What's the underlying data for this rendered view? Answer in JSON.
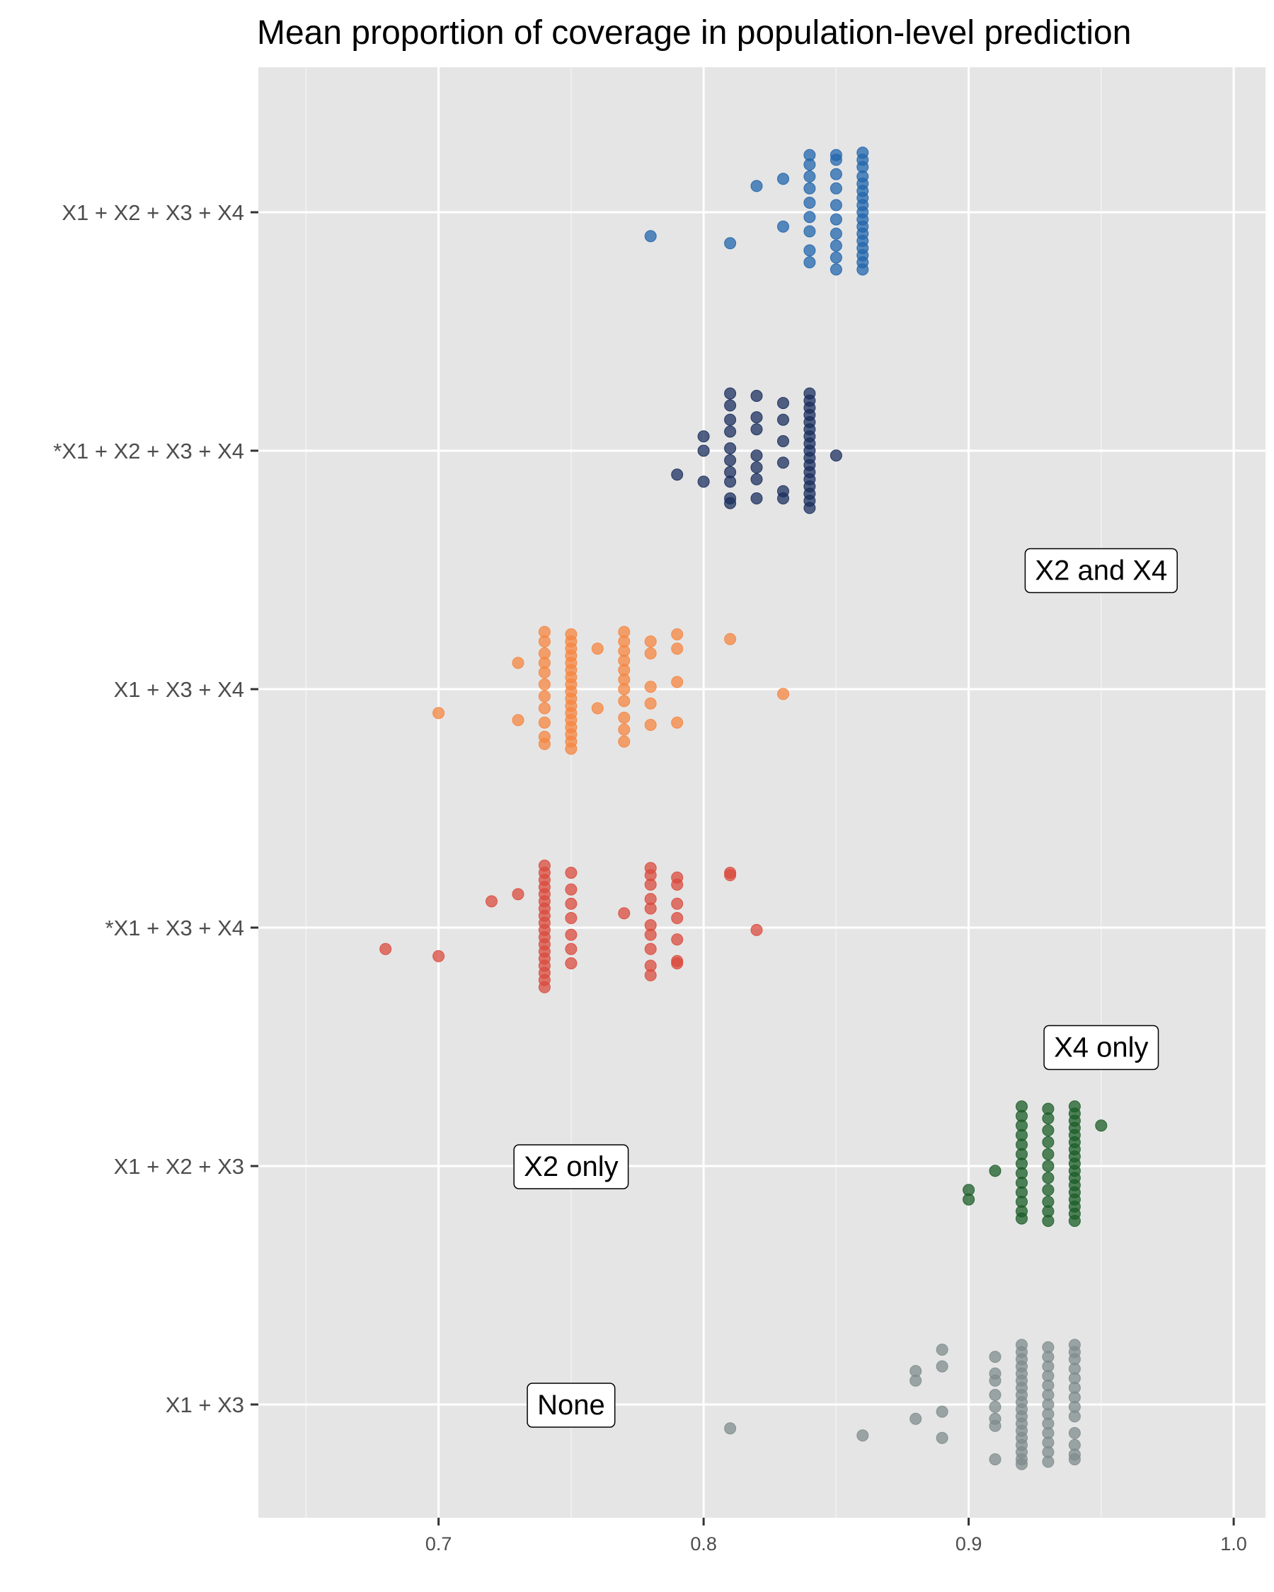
{
  "chart_data": {
    "type": "scatter",
    "title": "Mean proportion of coverage in population-level prediction",
    "xlabel": "",
    "ylabel": "",
    "xlim": [
      0.632,
      1.012
    ],
    "x_ticks": [
      "0.7",
      "0.8",
      "0.9",
      "1.0"
    ],
    "x_tick_values": [
      0.7,
      0.8,
      0.9,
      1.0
    ],
    "x_minor_grid": [
      0.65,
      0.75,
      0.85,
      0.95
    ],
    "grid": true,
    "legend": "none",
    "categories": [
      "X1 + X2 + X3 + X4",
      "*X1 + X2 + X3 + X4",
      "X1 + X3 + X4",
      "*X1 + X3 + X4",
      "X1 + X2 + X3",
      "X1 + X3"
    ],
    "series": [
      {
        "category": "X1 + X2 + X3 + X4",
        "color": "#2166ac",
        "points": [
          [
            0.78,
            -0.1
          ],
          [
            0.81,
            -0.13
          ],
          [
            0.82,
            0.11
          ],
          [
            0.83,
            0.14
          ],
          [
            0.83,
            -0.06
          ],
          [
            0.84,
            0.24
          ],
          [
            0.84,
            0.2
          ],
          [
            0.84,
            0.15
          ],
          [
            0.84,
            0.1
          ],
          [
            0.84,
            0.04
          ],
          [
            0.84,
            -0.02
          ],
          [
            0.84,
            -0.08
          ],
          [
            0.84,
            -0.16
          ],
          [
            0.84,
            -0.21
          ],
          [
            0.85,
            0.24
          ],
          [
            0.85,
            0.22
          ],
          [
            0.85,
            0.16
          ],
          [
            0.85,
            0.1
          ],
          [
            0.85,
            0.03
          ],
          [
            0.85,
            -0.03
          ],
          [
            0.85,
            -0.09
          ],
          [
            0.85,
            -0.14
          ],
          [
            0.85,
            -0.19
          ],
          [
            0.85,
            -0.24
          ],
          [
            0.86,
            0.25
          ],
          [
            0.86,
            0.22
          ],
          [
            0.86,
            0.19
          ],
          [
            0.86,
            0.15
          ],
          [
            0.86,
            0.12
          ],
          [
            0.86,
            0.09
          ],
          [
            0.86,
            0.06
          ],
          [
            0.86,
            0.03
          ],
          [
            0.86,
            0.0
          ],
          [
            0.86,
            -0.03
          ],
          [
            0.86,
            -0.06
          ],
          [
            0.86,
            -0.09
          ],
          [
            0.86,
            -0.12
          ],
          [
            0.86,
            -0.15
          ],
          [
            0.86,
            -0.18
          ],
          [
            0.86,
            -0.21
          ],
          [
            0.86,
            -0.24
          ]
        ]
      },
      {
        "category": "*X1 + X2 + X3 + X4",
        "color": "#1b2f5e",
        "points": [
          [
            0.79,
            -0.1
          ],
          [
            0.8,
            0.06
          ],
          [
            0.8,
            0.0
          ],
          [
            0.8,
            -0.13
          ],
          [
            0.81,
            0.24
          ],
          [
            0.81,
            0.19
          ],
          [
            0.81,
            0.13
          ],
          [
            0.81,
            0.08
          ],
          [
            0.81,
            0.01
          ],
          [
            0.81,
            -0.04
          ],
          [
            0.81,
            -0.09
          ],
          [
            0.81,
            -0.13
          ],
          [
            0.81,
            -0.2
          ],
          [
            0.81,
            -0.22
          ],
          [
            0.82,
            0.23
          ],
          [
            0.82,
            0.14
          ],
          [
            0.82,
            0.09
          ],
          [
            0.82,
            -0.02
          ],
          [
            0.82,
            -0.07
          ],
          [
            0.82,
            -0.12
          ],
          [
            0.82,
            -0.2
          ],
          [
            0.83,
            0.2
          ],
          [
            0.83,
            0.13
          ],
          [
            0.83,
            0.04
          ],
          [
            0.83,
            -0.05
          ],
          [
            0.83,
            -0.17
          ],
          [
            0.83,
            -0.2
          ],
          [
            0.84,
            0.24
          ],
          [
            0.84,
            0.21
          ],
          [
            0.84,
            0.18
          ],
          [
            0.84,
            0.15
          ],
          [
            0.84,
            0.12
          ],
          [
            0.84,
            0.09
          ],
          [
            0.84,
            0.06
          ],
          [
            0.84,
            0.03
          ],
          [
            0.84,
            0.0
          ],
          [
            0.84,
            -0.03
          ],
          [
            0.84,
            -0.06
          ],
          [
            0.84,
            -0.09
          ],
          [
            0.84,
            -0.12
          ],
          [
            0.84,
            -0.15
          ],
          [
            0.84,
            -0.18
          ],
          [
            0.84,
            -0.21
          ],
          [
            0.84,
            -0.24
          ],
          [
            0.85,
            -0.02
          ]
        ]
      },
      {
        "category": "X1 + X3 + X4",
        "color": "#f58540",
        "points": [
          [
            0.7,
            -0.1
          ],
          [
            0.73,
            0.11
          ],
          [
            0.73,
            -0.13
          ],
          [
            0.74,
            0.24
          ],
          [
            0.74,
            0.2
          ],
          [
            0.74,
            0.15
          ],
          [
            0.74,
            0.11
          ],
          [
            0.74,
            0.07
          ],
          [
            0.74,
            0.02
          ],
          [
            0.74,
            -0.03
          ],
          [
            0.74,
            -0.08
          ],
          [
            0.74,
            -0.14
          ],
          [
            0.74,
            -0.2
          ],
          [
            0.74,
            -0.23
          ],
          [
            0.75,
            0.23
          ],
          [
            0.75,
            0.2
          ],
          [
            0.75,
            0.17
          ],
          [
            0.75,
            0.14
          ],
          [
            0.75,
            0.11
          ],
          [
            0.75,
            0.08
          ],
          [
            0.75,
            0.05
          ],
          [
            0.75,
            0.02
          ],
          [
            0.75,
            -0.01
          ],
          [
            0.75,
            -0.04
          ],
          [
            0.75,
            -0.07
          ],
          [
            0.75,
            -0.1
          ],
          [
            0.75,
            -0.13
          ],
          [
            0.75,
            -0.16
          ],
          [
            0.75,
            -0.19
          ],
          [
            0.75,
            -0.22
          ],
          [
            0.75,
            -0.25
          ],
          [
            0.76,
            0.17
          ],
          [
            0.76,
            -0.08
          ],
          [
            0.77,
            0.24
          ],
          [
            0.77,
            0.2
          ],
          [
            0.77,
            0.16
          ],
          [
            0.77,
            0.12
          ],
          [
            0.77,
            0.08
          ],
          [
            0.77,
            0.04
          ],
          [
            0.77,
            0.0
          ],
          [
            0.77,
            -0.05
          ],
          [
            0.77,
            -0.12
          ],
          [
            0.77,
            -0.17
          ],
          [
            0.77,
            -0.22
          ],
          [
            0.78,
            0.2
          ],
          [
            0.78,
            0.15
          ],
          [
            0.78,
            0.01
          ],
          [
            0.78,
            -0.06
          ],
          [
            0.78,
            -0.15
          ],
          [
            0.79,
            0.23
          ],
          [
            0.79,
            0.17
          ],
          [
            0.79,
            0.03
          ],
          [
            0.79,
            -0.14
          ],
          [
            0.81,
            0.21
          ],
          [
            0.83,
            -0.02
          ]
        ]
      },
      {
        "category": "*X1 + X3 + X4",
        "color": "#d94b3e",
        "points": [
          [
            0.68,
            -0.09
          ],
          [
            0.7,
            -0.12
          ],
          [
            0.72,
            0.11
          ],
          [
            0.73,
            0.14
          ],
          [
            0.74,
            0.26
          ],
          [
            0.74,
            0.23
          ],
          [
            0.74,
            0.2
          ],
          [
            0.74,
            0.17
          ],
          [
            0.74,
            0.14
          ],
          [
            0.74,
            0.11
          ],
          [
            0.74,
            0.08
          ],
          [
            0.74,
            0.05
          ],
          [
            0.74,
            0.02
          ],
          [
            0.74,
            -0.01
          ],
          [
            0.74,
            -0.04
          ],
          [
            0.74,
            -0.07
          ],
          [
            0.74,
            -0.1
          ],
          [
            0.74,
            -0.13
          ],
          [
            0.74,
            -0.16
          ],
          [
            0.74,
            -0.19
          ],
          [
            0.74,
            -0.22
          ],
          [
            0.74,
            -0.25
          ],
          [
            0.75,
            0.23
          ],
          [
            0.75,
            0.16
          ],
          [
            0.75,
            0.1
          ],
          [
            0.75,
            0.04
          ],
          [
            0.75,
            -0.03
          ],
          [
            0.75,
            -0.09
          ],
          [
            0.75,
            -0.15
          ],
          [
            0.77,
            0.06
          ],
          [
            0.78,
            0.25
          ],
          [
            0.78,
            0.22
          ],
          [
            0.78,
            0.18
          ],
          [
            0.78,
            0.12
          ],
          [
            0.78,
            0.08
          ],
          [
            0.78,
            0.01
          ],
          [
            0.78,
            -0.03
          ],
          [
            0.78,
            -0.09
          ],
          [
            0.78,
            -0.16
          ],
          [
            0.78,
            -0.2
          ],
          [
            0.79,
            0.21
          ],
          [
            0.79,
            0.18
          ],
          [
            0.79,
            0.1
          ],
          [
            0.79,
            0.04
          ],
          [
            0.79,
            -0.05
          ],
          [
            0.79,
            -0.14
          ],
          [
            0.79,
            -0.15
          ],
          [
            0.81,
            0.23
          ],
          [
            0.81,
            0.22
          ],
          [
            0.82,
            -0.01
          ]
        ]
      },
      {
        "category": "X1 + X2 + X3",
        "color": "#1b5e28",
        "points": [
          [
            0.9,
            -0.1
          ],
          [
            0.9,
            -0.14
          ],
          [
            0.91,
            -0.02
          ],
          [
            0.95,
            0.17
          ],
          [
            0.92,
            0.25
          ],
          [
            0.92,
            0.21
          ],
          [
            0.92,
            0.17
          ],
          [
            0.92,
            0.13
          ],
          [
            0.92,
            0.09
          ],
          [
            0.92,
            0.05
          ],
          [
            0.92,
            0.01
          ],
          [
            0.92,
            -0.03
          ],
          [
            0.92,
            -0.07
          ],
          [
            0.92,
            -0.11
          ],
          [
            0.92,
            -0.15
          ],
          [
            0.92,
            -0.19
          ],
          [
            0.92,
            -0.22
          ],
          [
            0.93,
            0.24
          ],
          [
            0.93,
            0.2
          ],
          [
            0.93,
            0.15
          ],
          [
            0.93,
            0.1
          ],
          [
            0.93,
            0.05
          ],
          [
            0.93,
            0.0
          ],
          [
            0.93,
            -0.05
          ],
          [
            0.93,
            -0.1
          ],
          [
            0.93,
            -0.15
          ],
          [
            0.93,
            -0.19
          ],
          [
            0.93,
            -0.23
          ],
          [
            0.94,
            0.25
          ],
          [
            0.94,
            0.22
          ],
          [
            0.94,
            0.19
          ],
          [
            0.94,
            0.16
          ],
          [
            0.94,
            0.13
          ],
          [
            0.94,
            0.1
          ],
          [
            0.94,
            0.07
          ],
          [
            0.94,
            0.04
          ],
          [
            0.94,
            0.01
          ],
          [
            0.94,
            -0.02
          ],
          [
            0.94,
            -0.05
          ],
          [
            0.94,
            -0.08
          ],
          [
            0.94,
            -0.11
          ],
          [
            0.94,
            -0.14
          ],
          [
            0.94,
            -0.17
          ],
          [
            0.94,
            -0.2
          ],
          [
            0.94,
            -0.23
          ]
        ]
      },
      {
        "category": "X1 + X3",
        "color": "#7f8c8d",
        "points": [
          [
            0.81,
            -0.1
          ],
          [
            0.86,
            -0.13
          ],
          [
            0.88,
            0.14
          ],
          [
            0.88,
            0.1
          ],
          [
            0.88,
            -0.06
          ],
          [
            0.89,
            0.23
          ],
          [
            0.89,
            0.16
          ],
          [
            0.89,
            -0.03
          ],
          [
            0.89,
            -0.14
          ],
          [
            0.91,
            0.2
          ],
          [
            0.91,
            0.13
          ],
          [
            0.91,
            0.1
          ],
          [
            0.91,
            0.04
          ],
          [
            0.91,
            -0.01
          ],
          [
            0.91,
            -0.06
          ],
          [
            0.91,
            -0.09
          ],
          [
            0.91,
            -0.23
          ],
          [
            0.92,
            0.25
          ],
          [
            0.92,
            0.22
          ],
          [
            0.92,
            0.19
          ],
          [
            0.92,
            0.16
          ],
          [
            0.92,
            0.13
          ],
          [
            0.92,
            0.1
          ],
          [
            0.92,
            0.07
          ],
          [
            0.92,
            0.04
          ],
          [
            0.92,
            0.01
          ],
          [
            0.92,
            -0.02
          ],
          [
            0.92,
            -0.05
          ],
          [
            0.92,
            -0.08
          ],
          [
            0.92,
            -0.11
          ],
          [
            0.92,
            -0.14
          ],
          [
            0.92,
            -0.17
          ],
          [
            0.92,
            -0.2
          ],
          [
            0.92,
            -0.23
          ],
          [
            0.92,
            -0.25
          ],
          [
            0.93,
            0.24
          ],
          [
            0.93,
            0.2
          ],
          [
            0.93,
            0.16
          ],
          [
            0.93,
            0.12
          ],
          [
            0.93,
            0.08
          ],
          [
            0.93,
            0.04
          ],
          [
            0.93,
            0.0
          ],
          [
            0.93,
            -0.04
          ],
          [
            0.93,
            -0.08
          ],
          [
            0.93,
            -0.12
          ],
          [
            0.93,
            -0.16
          ],
          [
            0.93,
            -0.2
          ],
          [
            0.93,
            -0.24
          ],
          [
            0.94,
            0.25
          ],
          [
            0.94,
            0.22
          ],
          [
            0.94,
            0.19
          ],
          [
            0.94,
            0.15
          ],
          [
            0.94,
            0.11
          ],
          [
            0.94,
            0.07
          ],
          [
            0.94,
            0.03
          ],
          [
            0.94,
            -0.01
          ],
          [
            0.94,
            -0.05
          ],
          [
            0.94,
            -0.12
          ],
          [
            0.94,
            -0.17
          ],
          [
            0.94,
            -0.21
          ],
          [
            0.94,
            -0.23
          ]
        ]
      }
    ],
    "annotations": [
      {
        "text": "X2 and X4",
        "x": 0.95,
        "y": 1.5
      },
      {
        "text": "X4 only",
        "x": 0.95,
        "y": 3.5
      },
      {
        "text": "X2 only",
        "x": 0.75,
        "y": 4.0
      },
      {
        "text": "None",
        "x": 0.75,
        "y": 5.0
      }
    ]
  }
}
